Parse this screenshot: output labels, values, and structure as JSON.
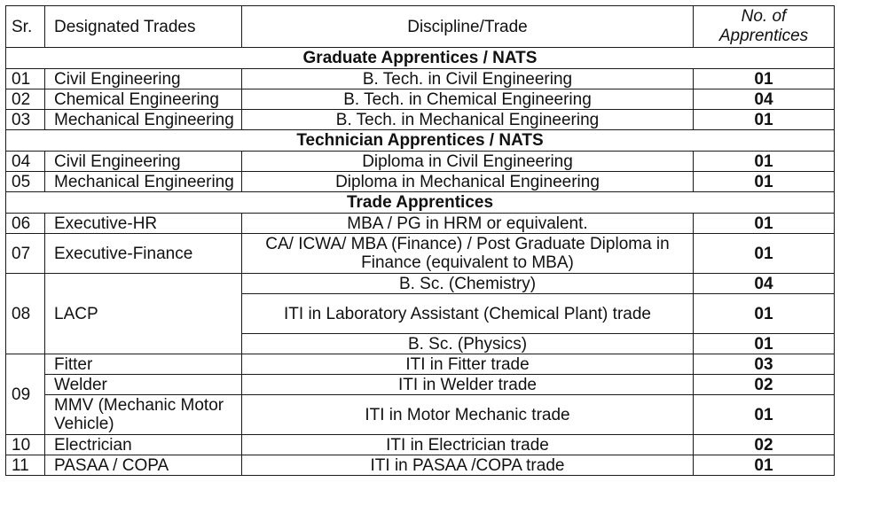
{
  "headers": {
    "sr": "Sr.",
    "trade": "Designated Trades",
    "discipline": "Discipline/Trade",
    "count": "No. of Apprentices"
  },
  "sections": [
    {
      "title": "Graduate Apprentices / NATS",
      "rows": [
        {
          "sr": "01",
          "trade": "Civil Engineering",
          "discipline": "B. Tech. in Civil Engineering",
          "count": "01"
        },
        {
          "sr": "02",
          "trade": "Chemical Engineering",
          "discipline": "B. Tech. in Chemical Engineering",
          "count": "04"
        },
        {
          "sr": "03",
          "trade": "Mechanical Engineering",
          "discipline": "B. Tech. in Mechanical Engineering",
          "count": "01"
        }
      ]
    },
    {
      "title": "Technician Apprentices / NATS",
      "rows": [
        {
          "sr": "04",
          "trade": "Civil Engineering",
          "discipline": "Diploma in Civil Engineering",
          "count": "01"
        },
        {
          "sr": "05",
          "trade": "Mechanical Engineering",
          "discipline": "Diploma in Mechanical Engineering",
          "count": "01"
        }
      ]
    },
    {
      "title": "Trade Apprentices",
      "rows": [
        {
          "sr": "06",
          "trade": "Executive-HR",
          "discipline": "MBA / PG in HRM or equivalent.",
          "count": "01"
        },
        {
          "sr": "07",
          "trade": "Executive-Finance",
          "discipline": "CA/ ICWA/ MBA (Finance) / Post Graduate Diploma in Finance (equivalent to MBA)",
          "count": "01"
        }
      ]
    }
  ],
  "lacp": {
    "sr": "08",
    "trade": "LACP",
    "rows": [
      {
        "discipline": "B. Sc. (Chemistry)",
        "count": "04"
      },
      {
        "discipline": "ITI in Laboratory Assistant (Chemical Plant) trade",
        "count": "01"
      },
      {
        "discipline": "B. Sc. (Physics)",
        "count": "01"
      }
    ]
  },
  "group09": {
    "sr": "09",
    "rows": [
      {
        "trade": "Fitter",
        "discipline": "ITI in Fitter trade",
        "count": "03"
      },
      {
        "trade": "Welder",
        "discipline": "ITI in Welder trade",
        "count": "02"
      },
      {
        "trade": "MMV (Mechanic Motor Vehicle)",
        "discipline": "ITI in Motor Mechanic trade",
        "count": "01"
      }
    ]
  },
  "tail": [
    {
      "sr": "10",
      "trade": "Electrician",
      "discipline": "ITI in Electrician trade",
      "count": "02"
    },
    {
      "sr": "11",
      "trade": "PASAA / COPA",
      "discipline": "ITI in PASAA /COPA trade",
      "count": "01"
    }
  ]
}
